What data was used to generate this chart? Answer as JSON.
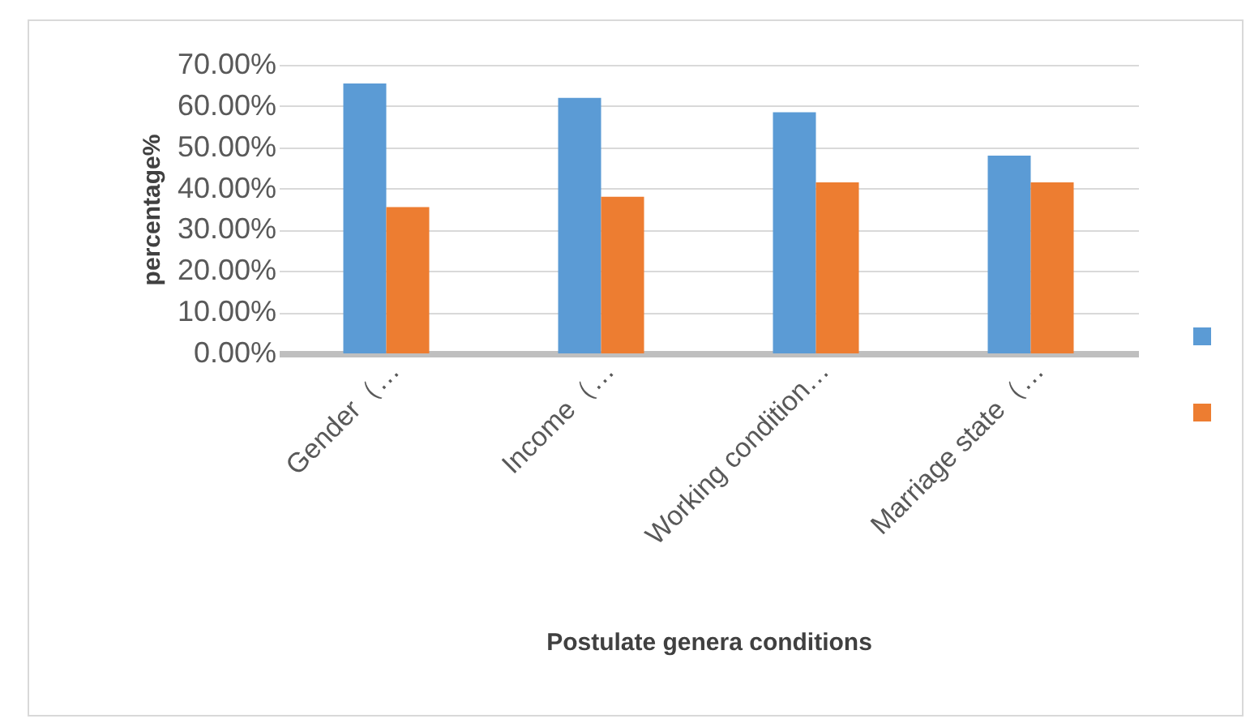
{
  "chart_data": {
    "type": "bar",
    "xlabel": "Postulate genera conditions",
    "ylabel": "percentage%",
    "categories": [
      "Gender（…",
      "Income（…",
      "Working condition…",
      "Marriage state（…"
    ],
    "series": [
      {
        "color": "#5b9bd5",
        "values": [
          65.5,
          62,
          58.5,
          48
        ]
      },
      {
        "color": "#ed7d31",
        "values": [
          35.5,
          38,
          41.5,
          41.5
        ]
      }
    ],
    "ylim": [
      0,
      70
    ],
    "yticks": [
      {
        "value": 0,
        "label": "0.00%"
      },
      {
        "value": 10,
        "label": "10.00%"
      },
      {
        "value": 20,
        "label": "20.00%"
      },
      {
        "value": 30,
        "label": "30.00%"
      },
      {
        "value": 40,
        "label": "40.00%"
      },
      {
        "value": 50,
        "label": "50.00%"
      },
      {
        "value": 60,
        "label": "60.00%"
      },
      {
        "value": 70,
        "label": "70.00%"
      }
    ],
    "grid": true
  }
}
